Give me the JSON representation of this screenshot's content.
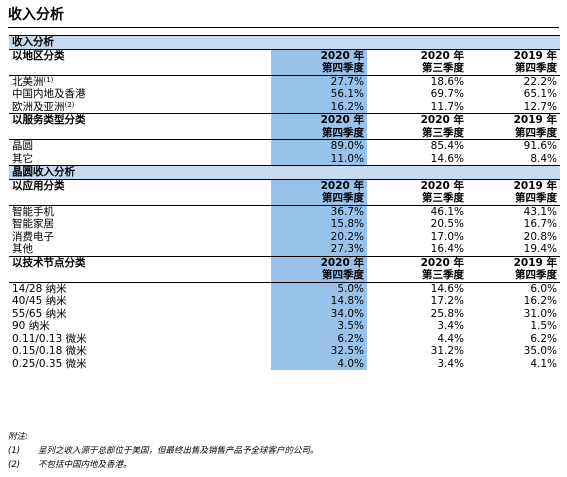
{
  "title": "收入分析",
  "sections": [
    {
      "title": "收入分析",
      "groups": [
        {
          "title": "以地区分类",
          "columns": [
            {
              "year": "2020 年",
              "quarter": "第四季度"
            },
            {
              "year": "2020 年",
              "quarter": "第三季度"
            },
            {
              "year": "2019 年",
              "quarter": "第四季度"
            }
          ],
          "rows": [
            {
              "label": "北美洲",
              "note": "(1)",
              "values": [
                "27.7%",
                "18.6%",
                "22.2%"
              ]
            },
            {
              "label": "中国内地及香港",
              "values": [
                "56.1%",
                "69.7%",
                "65.1%"
              ]
            },
            {
              "label": "欧洲及亚洲",
              "note": "(2)",
              "values": [
                "16.2%",
                "11.7%",
                "12.7%"
              ]
            }
          ]
        },
        {
          "title": "以服务类型分类",
          "columns": [
            {
              "year": "2020 年",
              "quarter": "第四季度"
            },
            {
              "year": "2020 年",
              "quarter": "第三季度"
            },
            {
              "year": "2019 年",
              "quarter": "第四季度"
            }
          ],
          "rows": [
            {
              "label": "晶圆",
              "values": [
                "89.0%",
                "85.4%",
                "91.6%"
              ]
            },
            {
              "label": "其它",
              "values": [
                "11.0%",
                "14.6%",
                "8.4%"
              ]
            }
          ]
        }
      ]
    },
    {
      "title": "晶圆收入分析",
      "groups": [
        {
          "title": "以应用分类",
          "columns": [
            {
              "year": "2020 年",
              "quarter": "第四季度"
            },
            {
              "year": "2020 年",
              "quarter": "第三季度"
            },
            {
              "year": "2019 年",
              "quarter": "第四季度"
            }
          ],
          "rows": [
            {
              "label": "智能手机",
              "values": [
                "36.7%",
                "46.1%",
                "43.1%"
              ]
            },
            {
              "label": "智能家居",
              "values": [
                "15.8%",
                "20.5%",
                "16.7%"
              ]
            },
            {
              "label": "消费电子",
              "values": [
                "20.2%",
                "17.0%",
                "20.8%"
              ]
            },
            {
              "label": "其他",
              "values": [
                "27.3%",
                "16.4%",
                "19.4%"
              ]
            }
          ]
        },
        {
          "title": "以技术节点分类",
          "columns": [
            {
              "year": "2020 年",
              "quarter": "第四季度"
            },
            {
              "year": "2020 年",
              "quarter": "第三季度"
            },
            {
              "year": "2019 年",
              "quarter": "第四季度"
            }
          ],
          "rows": [
            {
              "label": "14/28 纳米",
              "values": [
                "5.0%",
                "14.6%",
                "6.0%"
              ]
            },
            {
              "label": "40/45 纳米",
              "values": [
                "14.8%",
                "17.2%",
                "16.2%"
              ]
            },
            {
              "label": "55/65 纳米",
              "values": [
                "34.0%",
                "25.8%",
                "31.0%"
              ]
            },
            {
              "label": "90 纳米",
              "values": [
                "3.5%",
                "3.4%",
                "1.5%"
              ]
            },
            {
              "label": "0.11/0.13 微米",
              "values": [
                "6.2%",
                "4.4%",
                "6.2%"
              ]
            },
            {
              "label": "0.15/0.18 微米",
              "values": [
                "32.5%",
                "31.2%",
                "35.0%"
              ]
            },
            {
              "label": "0.25/0.35 微米",
              "values": [
                "4.0%",
                "3.4%",
                "4.1%"
              ]
            }
          ]
        }
      ]
    }
  ],
  "footnotes": {
    "heading": "附注:",
    "items": [
      {
        "marker": "(1)",
        "text": "呈列之收入源于总部位于美国，但最终出售及销售产品予全球客户的公司。"
      },
      {
        "marker": "(2)",
        "text": "不包括中国内地及香港。"
      }
    ]
  }
}
